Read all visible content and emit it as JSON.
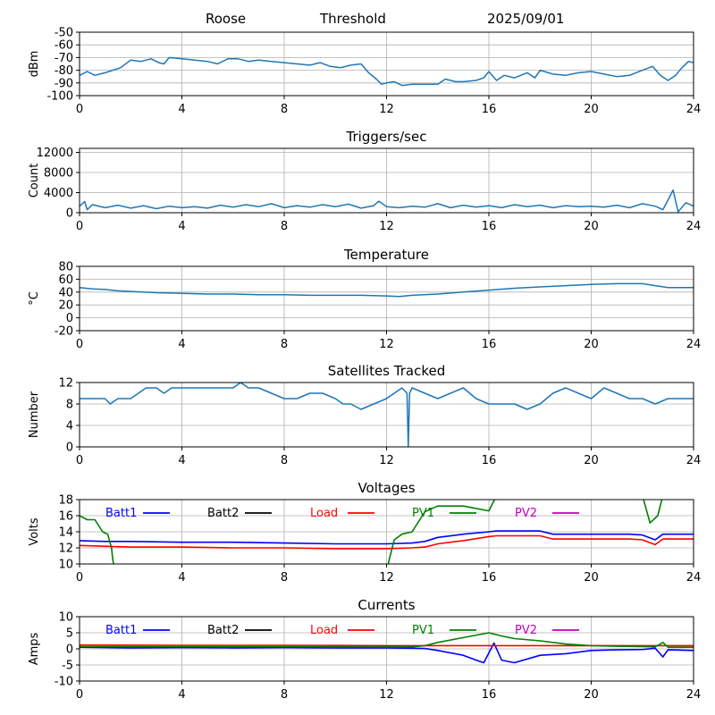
{
  "header": {
    "station": "Roose",
    "mode": "Threshold",
    "date": "2025/09/01"
  },
  "colors": {
    "default": "#1f77b4",
    "Batt1": "#0000ff",
    "Batt2": "#000000",
    "Load": "#ff0000",
    "PV1": "#008000",
    "PV2": "#bf00bf",
    "grid": "#b0b0b0"
  },
  "chart_data": [
    {
      "id": "signal",
      "type": "line",
      "title": "",
      "xlabel": "",
      "ylabel": "dBm",
      "xlim": [
        0,
        24
      ],
      "ylim": [
        -100,
        -50
      ],
      "xticks": [
        0,
        4,
        8,
        12,
        16,
        20,
        24
      ],
      "yticks": [
        -100,
        -90,
        -80,
        -70,
        -60,
        -50
      ],
      "grid": true,
      "series": [
        {
          "x": [
            0,
            0.3,
            0.6,
            1,
            1.3,
            1.6,
            2,
            2.4,
            2.8,
            3.1,
            3.3,
            3.5,
            4,
            4.5,
            5,
            5.4,
            5.8,
            6.2,
            6.6,
            7,
            7.5,
            8,
            8.5,
            9,
            9.4,
            9.8,
            10.2,
            10.6,
            11,
            11.3,
            11.6,
            11.8,
            12,
            12.3,
            12.6,
            13,
            13.5,
            14,
            14.3,
            14.7,
            15,
            15.5,
            15.8,
            16,
            16.3,
            16.6,
            17,
            17.5,
            17.8,
            18,
            18.5,
            19,
            19.5,
            20,
            20.5,
            21,
            21.5,
            22,
            22.4,
            22.7,
            23,
            23.3,
            23.5,
            23.8,
            24
          ],
          "values": [
            -84,
            -81,
            -84,
            -82,
            -80,
            -78,
            -72,
            -73,
            -71,
            -74,
            -75,
            -70,
            -71,
            -72,
            -73,
            -75,
            -71,
            -71,
            -73,
            -72,
            -73,
            -74,
            -75,
            -76,
            -74,
            -77,
            -78,
            -76,
            -75,
            -82,
            -87,
            -91,
            -90,
            -89,
            -92,
            -91,
            -91,
            -91,
            -87,
            -89,
            -89,
            -88,
            -86,
            -81,
            -88,
            -84,
            -86,
            -82,
            -86,
            -80,
            -83,
            -84,
            -82,
            -81,
            -83,
            -85,
            -84,
            -80,
            -77,
            -84,
            -88,
            -84,
            -79,
            -73,
            -74
          ]
        }
      ]
    },
    {
      "id": "triggers",
      "type": "line",
      "title": "Triggers/sec",
      "xlabel": "",
      "ylabel": "Count",
      "xlim": [
        0,
        24
      ],
      "ylim": [
        0,
        12800
      ],
      "xticks": [
        0,
        4,
        8,
        12,
        16,
        20,
        24
      ],
      "yticks": [
        0,
        4000,
        8000,
        12000
      ],
      "grid": true,
      "series": [
        {
          "x": [
            0,
            0.2,
            0.3,
            0.5,
            1,
            1.5,
            2,
            2.5,
            3,
            3.5,
            4,
            4.5,
            5,
            5.5,
            6,
            6.5,
            7,
            7.5,
            8,
            8.5,
            9,
            9.5,
            10,
            10.5,
            11,
            11.5,
            11.7,
            12,
            12.5,
            13,
            13.5,
            14,
            14.5,
            15,
            15.5,
            16,
            16.5,
            17,
            17.5,
            18,
            18.5,
            19,
            19.5,
            20,
            20.5,
            21,
            21.5,
            22,
            22.5,
            22.8,
            23,
            23.2,
            23.4,
            23.7,
            24
          ],
          "values": [
            1300,
            2200,
            600,
            1600,
            1000,
            1500,
            900,
            1400,
            800,
            1300,
            1000,
            1200,
            900,
            1500,
            1100,
            1600,
            1200,
            1800,
            1000,
            1400,
            1100,
            1600,
            1200,
            1700,
            900,
            1400,
            2300,
            1200,
            1000,
            1300,
            1100,
            1800,
            1000,
            1500,
            1100,
            1400,
            1000,
            1600,
            1200,
            1500,
            1000,
            1400,
            1200,
            1300,
            1100,
            1500,
            1000,
            1800,
            1300,
            600,
            2500,
            4500,
            200,
            2000,
            1300
          ]
        }
      ]
    },
    {
      "id": "temperature",
      "type": "line",
      "title": "Temperature",
      "xlabel": "",
      "ylabel": "°C",
      "xlim": [
        0,
        24
      ],
      "ylim": [
        -20,
        80
      ],
      "xticks": [
        0,
        4,
        8,
        12,
        16,
        20,
        24
      ],
      "yticks": [
        -20,
        0,
        20,
        40,
        60,
        80
      ],
      "grid": true,
      "series": [
        {
          "x": [
            0,
            0.5,
            1,
            1.5,
            2,
            3,
            4,
            5,
            6,
            7,
            8,
            9,
            10,
            11,
            12,
            12.5,
            13,
            14,
            15,
            16,
            17,
            18,
            19,
            20,
            21,
            22,
            22.5,
            23,
            24
          ],
          "values": [
            47,
            45,
            44,
            42,
            41,
            39,
            38,
            37,
            37,
            36,
            36,
            35,
            35,
            35,
            34,
            33,
            35,
            37,
            40,
            43,
            46,
            48,
            50,
            52,
            53,
            53,
            50,
            47,
            47
          ]
        }
      ]
    },
    {
      "id": "satellites",
      "type": "line",
      "title": "Satellites Tracked",
      "xlabel": "",
      "ylabel": "Number",
      "xlim": [
        0,
        24
      ],
      "ylim": [
        0,
        12
      ],
      "xticks": [
        0,
        4,
        8,
        12,
        16,
        20,
        24
      ],
      "yticks": [
        0,
        4,
        8,
        12
      ],
      "grid": true,
      "series": [
        {
          "x": [
            0,
            0.5,
            1,
            1.2,
            1.5,
            2,
            2.3,
            2.6,
            3,
            3.3,
            3.6,
            4,
            4.5,
            5,
            5.5,
            6,
            6.3,
            6.6,
            7,
            7.5,
            8,
            8.5,
            9,
            9.5,
            10,
            10.3,
            10.6,
            11,
            11.5,
            12,
            12.3,
            12.6,
            12.8,
            12.85,
            12.9,
            13,
            13.5,
            14,
            14.5,
            15,
            15.5,
            16,
            16.5,
            17,
            17.5,
            18,
            18.5,
            19,
            19.5,
            20,
            20.5,
            21,
            21.5,
            22,
            22.5,
            23,
            23.5,
            24
          ],
          "values": [
            9,
            9,
            9,
            8,
            9,
            9,
            10,
            11,
            11,
            10,
            11,
            11,
            11,
            11,
            11,
            11,
            12,
            11,
            11,
            10,
            9,
            9,
            10,
            10,
            9,
            8,
            8,
            7,
            8,
            9,
            10,
            11,
            10,
            0,
            10,
            11,
            10,
            9,
            10,
            11,
            9,
            8,
            8,
            8,
            7,
            8,
            10,
            11,
            10,
            9,
            11,
            10,
            9,
            9,
            8,
            9,
            9,
            9
          ]
        }
      ]
    },
    {
      "id": "voltages",
      "type": "line",
      "title": "Voltages",
      "xlabel": "",
      "ylabel": "Volts",
      "xlim": [
        0,
        24
      ],
      "ylim": [
        10,
        18
      ],
      "xticks": [
        0,
        4,
        8,
        12,
        16,
        20,
        24
      ],
      "yticks": [
        10,
        12,
        14,
        16,
        18
      ],
      "grid": true,
      "legend_position": "top, single row",
      "series": [
        {
          "name": "Batt1",
          "x": [
            0,
            1,
            2,
            4,
            6,
            8,
            10,
            11,
            12,
            13,
            13.5,
            14,
            15,
            16,
            16.3,
            17,
            18,
            18.5,
            20,
            21,
            21.5,
            22,
            22.5,
            22.8,
            24
          ],
          "values": [
            12.9,
            12.8,
            12.8,
            12.7,
            12.7,
            12.6,
            12.5,
            12.5,
            12.5,
            12.6,
            12.8,
            13.3,
            13.7,
            14.0,
            14.1,
            14.1,
            14.1,
            13.7,
            13.7,
            13.7,
            13.7,
            13.6,
            13.0,
            13.7,
            13.7
          ]
        },
        {
          "name": "Batt2",
          "x": [],
          "values": []
        },
        {
          "name": "Load",
          "x": [
            0,
            1,
            2,
            4,
            6,
            8,
            10,
            11,
            12,
            13,
            13.5,
            14,
            15,
            16,
            16.3,
            17,
            18,
            18.5,
            20,
            21,
            21.5,
            22,
            22.5,
            22.8,
            24
          ],
          "values": [
            12.3,
            12.2,
            12.1,
            12.1,
            12.0,
            12.0,
            11.9,
            11.9,
            11.9,
            12.0,
            12.1,
            12.5,
            12.9,
            13.4,
            13.5,
            13.5,
            13.5,
            13.1,
            13.1,
            13.1,
            13.1,
            13.0,
            12.4,
            13.1,
            13.1
          ]
        },
        {
          "name": "PV1",
          "x": [
            0,
            0.3,
            0.6,
            0.9,
            1.1,
            1.25,
            1.3,
            1.4,
            12.0,
            12.1,
            12.3,
            12.6,
            13.0,
            13.5,
            14.0,
            15.0,
            16.0,
            16.3,
            22.0,
            22.3,
            22.6,
            22.8
          ],
          "values": [
            16.0,
            15.5,
            15.5,
            14.0,
            13.7,
            12.0,
            10.5,
            9.0,
            9.0,
            10.5,
            13.0,
            13.7,
            14.0,
            16.5,
            17.2,
            17.2,
            16.6,
            18.5,
            18.5,
            15.1,
            16.0,
            18.5
          ]
        },
        {
          "name": "PV2",
          "x": [],
          "values": []
        }
      ]
    },
    {
      "id": "currents",
      "type": "line",
      "title": "Currents",
      "xlabel": "",
      "ylabel": "Amps",
      "xlim": [
        0,
        24
      ],
      "ylim": [
        -10,
        10
      ],
      "xticks": [
        0,
        4,
        8,
        12,
        16,
        20,
        24
      ],
      "yticks": [
        -10,
        -5,
        0,
        5,
        10
      ],
      "grid": true,
      "legend_position": "top, single row",
      "series": [
        {
          "name": "Batt1",
          "x": [
            0,
            2,
            4,
            6,
            8,
            10,
            12,
            13,
            13.5,
            14,
            15,
            15.5,
            15.8,
            16.2,
            16.5,
            17,
            18,
            19,
            20,
            21,
            22,
            22.5,
            22.8,
            23,
            24
          ],
          "values": [
            0.5,
            0.3,
            0.4,
            0.3,
            0.4,
            0.3,
            0.3,
            0.2,
            0.1,
            -0.5,
            -2.0,
            -3.5,
            -4.3,
            1.8,
            -3.5,
            -4.3,
            -2.0,
            -1.5,
            -0.5,
            -0.3,
            -0.2,
            0.2,
            -2.5,
            -0.3,
            -0.5
          ]
        },
        {
          "name": "Batt2",
          "x": [],
          "values": []
        },
        {
          "name": "Load",
          "x": [
            0,
            4,
            8,
            12,
            16,
            20,
            24
          ],
          "values": [
            1.2,
            1.1,
            1.1,
            1.0,
            1.0,
            1.0,
            1.0
          ]
        },
        {
          "name": "PV1",
          "x": [
            0,
            4,
            8,
            12,
            13,
            13.5,
            14,
            15,
            16,
            16.5,
            17,
            18,
            19,
            20,
            21,
            22,
            22.5,
            22.8,
            23,
            24
          ],
          "values": [
            0.7,
            0.7,
            0.7,
            0.6,
            0.6,
            1.0,
            2.0,
            3.5,
            5.0,
            4.0,
            3.2,
            2.5,
            1.5,
            1.0,
            0.8,
            0.7,
            0.6,
            2.0,
            0.5,
            0.5
          ]
        },
        {
          "name": "PV2",
          "x": [],
          "values": []
        }
      ]
    }
  ]
}
